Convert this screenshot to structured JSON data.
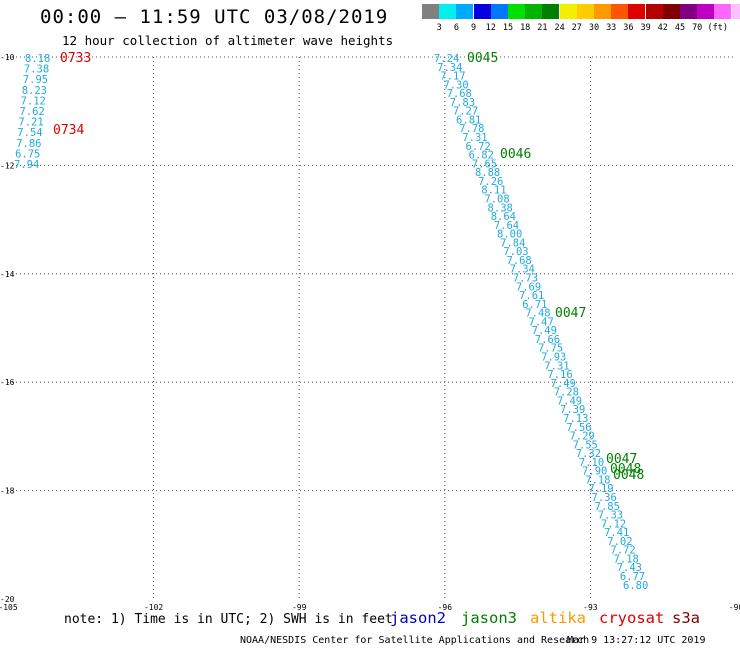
{
  "header": {
    "title": "00:00 – 11:59 UTC 03/08/2019",
    "subtitle": "12 hour collection of altimeter wave heights"
  },
  "colorbar": {
    "colors": [
      "#808080",
      "#00f0f0",
      "#00aaff",
      "#0000e0",
      "#0077ff",
      "#00e000",
      "#00b400",
      "#008000",
      "#f0f000",
      "#ffcc00",
      "#ff9900",
      "#ff5500",
      "#e00000",
      "#b40000",
      "#800000",
      "#800080",
      "#c000c0",
      "#ff66ff",
      "#ffc0ff",
      "#000000"
    ],
    "labels": [
      "3",
      "6",
      "9",
      "12",
      "15",
      "18",
      "21",
      "24",
      "27",
      "30",
      "33",
      "36",
      "39",
      "42",
      "45",
      "70"
    ],
    "unit": "(ft)"
  },
  "map": {
    "lon_range": [
      -105,
      -90
    ],
    "lat_range": [
      -20,
      -10
    ],
    "x_ticks": [
      "-105",
      "-102",
      "-99",
      "-96",
      "-93",
      "-90"
    ],
    "y_ticks": [
      "-10",
      "-12",
      "-14",
      "-16",
      "-18",
      "-20"
    ],
    "grid": "dotted",
    "value_color": "#22aadd",
    "track_a": {
      "values": [
        "8.18",
        "7.38",
        "7.95",
        "8.23",
        "7.12",
        "7.62",
        "7.21",
        "7.54",
        "7.86",
        "6.75",
        "7.94"
      ]
    },
    "track_a_times": [
      {
        "label": "0733",
        "color": "#e00000"
      },
      {
        "label": "0734",
        "color": "#e00000"
      }
    ],
    "track_b": {
      "values": [
        "7.24",
        "7.34",
        "7.17",
        "7.30",
        "7.68",
        "7.83",
        "7.27",
        "6.81",
        "7.78",
        "7.31",
        "6.72",
        "6.82",
        "7.65",
        "8.88",
        "7.26",
        "8.11",
        "7.08",
        "8.38",
        "8.64",
        "7.64",
        "8.00",
        "7.84",
        "7.03",
        "7.68",
        "7.34",
        "7.73",
        "7.69",
        "7.61",
        "6.71",
        "7.48",
        "7.47",
        "7.49",
        "7.66",
        "7.75",
        "7.93",
        "7.31",
        "7.16",
        "7.49",
        "7.28",
        "7.49",
        "7.39",
        "7.13",
        "7.56",
        "7.29",
        "7.55",
        "7.32",
        "7.10",
        "7.90",
        "7.18",
        "7.19",
        "7.36",
        "7.85",
        "7.33",
        "7.12",
        "7.41",
        "7.02",
        "7.72",
        "7.18",
        "7.43",
        "6.77",
        "6.80"
      ]
    },
    "track_b_times": [
      {
        "label": "0045",
        "color": "#008000"
      },
      {
        "label": "0046",
        "color": "#008000"
      },
      {
        "label": "0047",
        "color": "#008000"
      },
      {
        "label": "0047",
        "color": "#008000"
      },
      {
        "label": "0048",
        "color": "#008000"
      },
      {
        "label": "0048",
        "color": "#008000"
      }
    ]
  },
  "footer": {
    "note": "note: 1) Time is in UTC; 2) SWH is in feet",
    "satellites": [
      {
        "name": "jason2",
        "color": "#0000cc"
      },
      {
        "name": "jason3",
        "color": "#008000"
      },
      {
        "name": "altika",
        "color": "#ff9900"
      },
      {
        "name": "cryosat",
        "color": "#e00000"
      },
      {
        "name": "s3a",
        "color": "#800000"
      }
    ],
    "credit": "NOAA/NESDIS Center for Satellite Applications and Research",
    "timestamp": "Mar  9 13:27:12 UTC 2019"
  }
}
